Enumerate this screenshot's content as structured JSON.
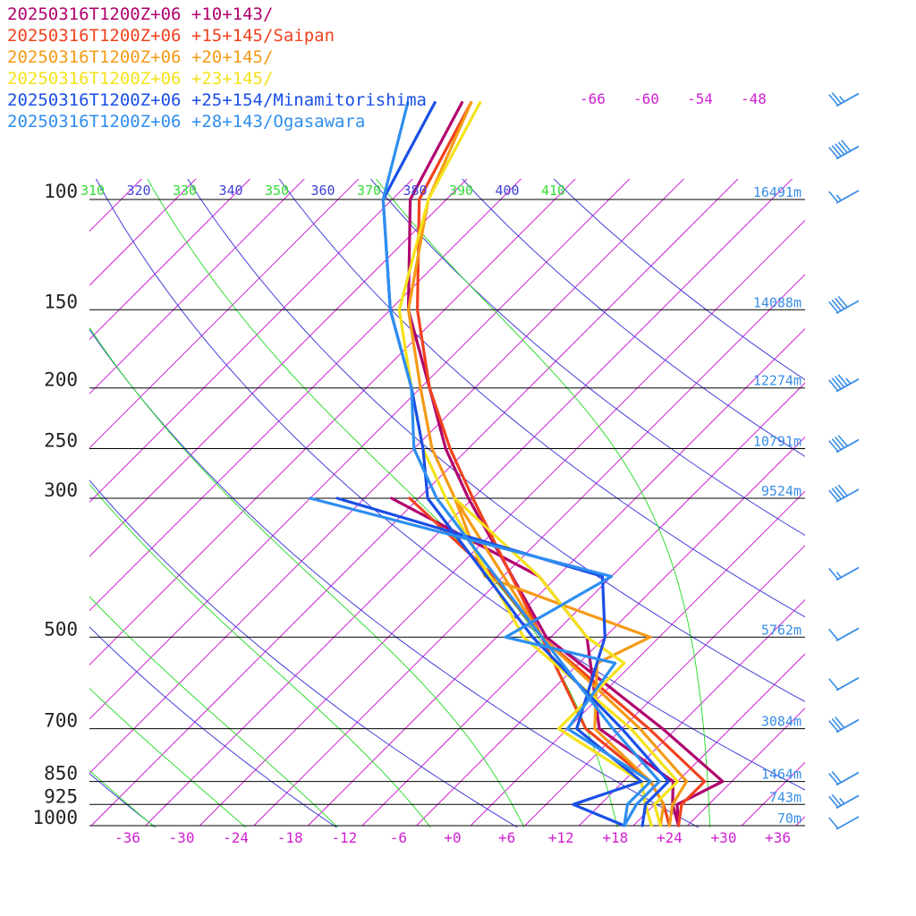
{
  "chart_data": {
    "type": "line",
    "chart_kind": "skew-T log-P",
    "legend": [
      {
        "label": "20250316T1200Z+06 +10+143/",
        "color": "#b0006e"
      },
      {
        "label": "20250316T1200Z+06 +15+145/Saipan",
        "color": "#f0421e"
      },
      {
        "label": "20250316T1200Z+06 +20+145/",
        "color": "#f59a16"
      },
      {
        "label": "20250316T1200Z+06 +23+145/",
        "color": "#f4e21c"
      },
      {
        "label": "20250316T1200Z+06 +25+154/Minamitorishima",
        "color": "#1a4fe6"
      },
      {
        "label": "20250316T1200Z+06 +28+143/Ogasawara",
        "color": "#2e8ef0"
      }
    ],
    "pressure_levels": [
      "100",
      "150",
      "200",
      "250",
      "300",
      "500",
      "700",
      "850",
      "925",
      "1000"
    ],
    "height_labels": [
      {
        "p": 100,
        "label": "16491m"
      },
      {
        "p": 150,
        "label": "14088m"
      },
      {
        "p": 200,
        "label": "12274m"
      },
      {
        "p": 250,
        "label": "10791m"
      },
      {
        "p": 300,
        "label": "9524m"
      },
      {
        "p": 500,
        "label": "5762m"
      },
      {
        "p": 700,
        "label": "3084m"
      },
      {
        "p": 850,
        "label": "1464m"
      },
      {
        "p": 925,
        "label": "743m"
      },
      {
        "p": 1000,
        "label": "70m"
      }
    ],
    "x_tick_labels": [
      "-36",
      "-30",
      "-24",
      "-18",
      "-12",
      "-6",
      "+0",
      "+6",
      "+12",
      "+18",
      "+24",
      "+30",
      "+36"
    ],
    "x_ticks": [
      -36,
      -30,
      -24,
      -18,
      -12,
      -6,
      0,
      6,
      12,
      18,
      24,
      30,
      36
    ],
    "top_temp_labels": [
      "-66",
      "-60",
      "-54",
      "-48"
    ],
    "theta_labels": [
      {
        "value": "310",
        "color": "#33dd33"
      },
      {
        "value": "320",
        "color": "#4040d8"
      },
      {
        "value": "330",
        "color": "#33dd33"
      },
      {
        "value": "340",
        "color": "#4040d8"
      },
      {
        "value": "350",
        "color": "#33dd33"
      },
      {
        "value": "360",
        "color": "#4040d8"
      },
      {
        "value": "370",
        "color": "#33dd33"
      },
      {
        "value": "380",
        "color": "#4040d8"
      },
      {
        "value": "390",
        "color": "#33dd33"
      },
      {
        "value": "400",
        "color": "#4040d8"
      },
      {
        "value": "410",
        "color": "#33dd33"
      }
    ],
    "colors": {
      "isotherm": "#d020d0",
      "dry_adiabat": "#4040d8",
      "moist_adiabat": "#33dd33",
      "isobar": "#000000",
      "height_label": "#3a8ee6",
      "wind_barb": "#3a8ee6"
    },
    "series": [
      {
        "name": "20250316T1200Z+06 +10+143/",
        "color": "#b0006e",
        "temperature": [
          [
            1000,
            25
          ],
          [
            925,
            22.5
          ],
          [
            850,
            25
          ],
          [
            700,
            12.5
          ],
          [
            500,
            -10.5
          ],
          [
            300,
            -34.5
          ],
          [
            250,
            -42.5
          ],
          [
            200,
            -51
          ],
          [
            150,
            -62
          ],
          [
            100,
            -74
          ],
          [
            70,
            -79
          ]
        ],
        "dewpoint": [
          [
            1000,
            25
          ],
          [
            925,
            22
          ],
          [
            850,
            19.5
          ],
          [
            700,
            5.5
          ],
          [
            500,
            -6
          ],
          [
            400,
            -18
          ],
          [
            300,
            -43
          ]
        ]
      },
      {
        "name": "20250316T1200Z+06 +15+145/Saipan",
        "color": "#f0421e",
        "temperature": [
          [
            1000,
            25
          ],
          [
            925,
            23
          ],
          [
            850,
            23
          ],
          [
            700,
            11
          ],
          [
            500,
            -11
          ],
          [
            300,
            -34
          ],
          [
            250,
            -42
          ],
          [
            200,
            -51
          ],
          [
            150,
            -61
          ],
          [
            100,
            -73
          ],
          [
            70,
            -78
          ]
        ],
        "dewpoint": [
          [
            1000,
            24
          ],
          [
            925,
            21
          ],
          [
            850,
            17
          ],
          [
            700,
            4
          ],
          [
            500,
            -11
          ],
          [
            400,
            -23
          ],
          [
            300,
            -41
          ]
        ]
      },
      {
        "name": "20250316T1200Z+06 +20+145/",
        "color": "#f59a16",
        "temperature": [
          [
            1000,
            24
          ],
          [
            925,
            22
          ],
          [
            850,
            21
          ],
          [
            700,
            10
          ],
          [
            500,
            -11
          ],
          [
            300,
            -36
          ],
          [
            250,
            -44
          ],
          [
            200,
            -52
          ],
          [
            150,
            -62
          ],
          [
            100,
            -72
          ],
          [
            70,
            -78
          ]
        ],
        "dewpoint": [
          [
            1000,
            23
          ],
          [
            925,
            21
          ],
          [
            850,
            17
          ],
          [
            700,
            5
          ],
          [
            550,
            -2
          ],
          [
            500,
            1
          ],
          [
            400,
            -24
          ],
          [
            300,
            -36
          ]
        ]
      },
      {
        "name": "20250316T1200Z+06 +23+145/",
        "color": "#f4e21c",
        "temperature": [
          [
            1000,
            23
          ],
          [
            925,
            20
          ],
          [
            850,
            20
          ],
          [
            700,
            9
          ],
          [
            500,
            -13
          ],
          [
            300,
            -37
          ],
          [
            250,
            -45
          ],
          [
            200,
            -53
          ],
          [
            150,
            -63
          ],
          [
            100,
            -72
          ],
          [
            70,
            -77
          ]
        ],
        "dewpoint": [
          [
            1000,
            22
          ],
          [
            925,
            19
          ],
          [
            850,
            16
          ],
          [
            700,
            1
          ],
          [
            550,
            1
          ],
          [
            500,
            -6
          ],
          [
            400,
            -18
          ],
          [
            300,
            -36
          ]
        ]
      },
      {
        "name": "20250316T1200Z+06 +25+154/Minamitorishima",
        "color": "#1a4fe6",
        "temperature": [
          [
            1000,
            21
          ],
          [
            925,
            19
          ],
          [
            850,
            19
          ],
          [
            700,
            8
          ],
          [
            500,
            -12
          ],
          [
            300,
            -39
          ],
          [
            250,
            -45
          ],
          [
            200,
            -53
          ],
          [
            150,
            -64
          ],
          [
            100,
            -77
          ],
          [
            70,
            -82
          ]
        ],
        "dewpoint": [
          [
            1000,
            19
          ],
          [
            925,
            11
          ],
          [
            850,
            16
          ],
          [
            700,
            3
          ],
          [
            500,
            -4
          ],
          [
            400,
            -11
          ],
          [
            300,
            -49
          ]
        ]
      },
      {
        "name": "20250316T1200Z+06 +28+143/Ogasawara",
        "color": "#2e8ef0",
        "temperature": [
          [
            1000,
            19
          ],
          [
            925,
            18
          ],
          [
            850,
            18
          ],
          [
            700,
            7
          ],
          [
            500,
            -11
          ],
          [
            300,
            -38
          ],
          [
            250,
            -46
          ],
          [
            200,
            -53
          ],
          [
            150,
            -64
          ],
          [
            100,
            -77
          ],
          [
            70,
            -85
          ]
        ],
        "dewpoint": [
          [
            1000,
            19
          ],
          [
            925,
            17
          ],
          [
            850,
            17
          ],
          [
            700,
            2
          ],
          [
            550,
            0
          ],
          [
            500,
            -15
          ],
          [
            400,
            -10
          ],
          [
            300,
            -52
          ]
        ]
      }
    ],
    "wind_barbs": [
      {
        "p": 70,
        "speed_kt": 25
      },
      {
        "p": 85,
        "speed_kt": 50
      },
      {
        "p": 100,
        "speed_kt": 15
      },
      {
        "p": 150,
        "speed_kt": 40
      },
      {
        "p": 200,
        "speed_kt": 45
      },
      {
        "p": 250,
        "speed_kt": 40
      },
      {
        "p": 300,
        "speed_kt": 40
      },
      {
        "p": 400,
        "speed_kt": 15
      },
      {
        "p": 500,
        "speed_kt": 10
      },
      {
        "p": 600,
        "speed_kt": 10
      },
      {
        "p": 700,
        "speed_kt": 30
      },
      {
        "p": 850,
        "speed_kt": 20
      },
      {
        "p": 925,
        "speed_kt": 25
      },
      {
        "p": 1000,
        "speed_kt": 10
      }
    ]
  }
}
